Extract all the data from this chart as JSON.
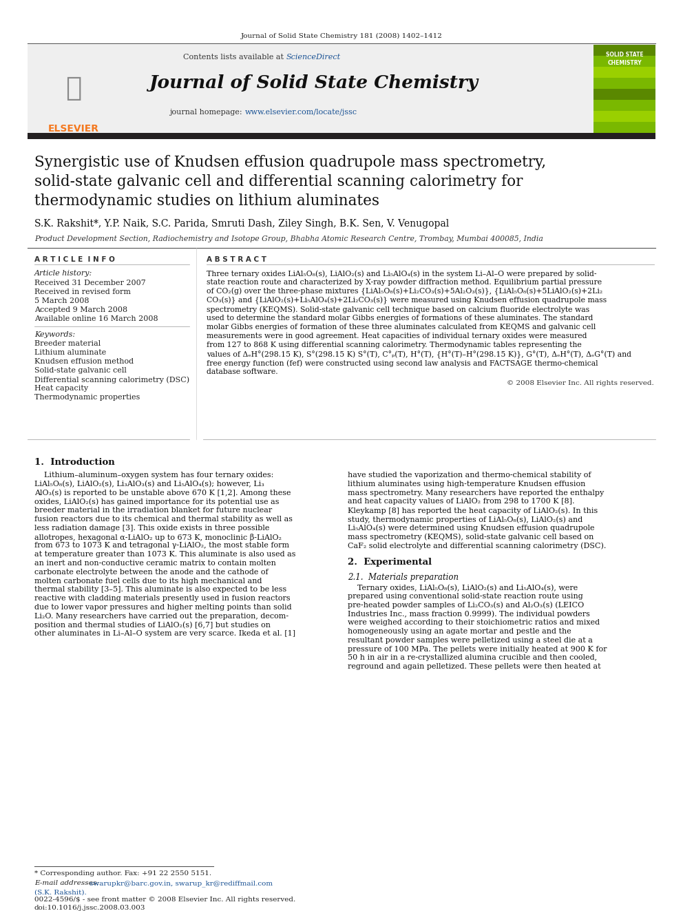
{
  "page_citation": "Journal of Solid State Chemistry 181 (2008) 1402–1412",
  "journal_name": "Journal of Solid State Chemistry",
  "contents_line": "Contents lists available at",
  "sciencedirect": "ScienceDirect",
  "homepage_label": "journal homepage:",
  "homepage_url": "www.elsevier.com/locate/jssc",
  "title_line1": "Synergistic use of Knudsen effusion quadrupole mass spectrometry,",
  "title_line2": "solid-state galvanic cell and differential scanning calorimetry for",
  "title_line3": "thermodynamic studies on lithium aluminates",
  "authors": "S.K. Rakshit*, Y.P. Naik, S.C. Parida, Smruti Dash, Ziley Singh, B.K. Sen, V. Venugopal",
  "affiliation": "Product Development Section, Radiochemistry and Isotope Group, Bhabha Atomic Research Centre, Trombay, Mumbai 400085, India",
  "article_info_header": "A R T I C L E  I N F O",
  "article_history_label": "Article history:",
  "history_lines": [
    "Received 31 December 2007",
    "Received in revised form",
    "5 March 2008",
    "Accepted 9 March 2008",
    "Available online 16 March 2008"
  ],
  "keywords_label": "Keywords:",
  "keywords": [
    "Breeder material",
    "Lithium aluminate",
    "Knudsen effusion method",
    "Solid-state galvanic cell",
    "Differential scanning calorimetry (DSC)",
    "Heat capacity",
    "Thermodynamic properties"
  ],
  "abstract_header": "A B S T R A C T",
  "abstract_lines": [
    "Three ternary oxides LiAl₅O₈(s), LiAlO₂(s) and Li₅AlO₄(s) in the system Li–Al–O were prepared by solid-",
    "state reaction route and characterized by X-ray powder diffraction method. Equilibrium partial pressure",
    "of CO₂(g) over the three-phase mixtures {LiAl₅O₈(s)+Li₂CO₃(s)+5Al₂O₃(s)}, {LiAl₅O₈(s)+5LiAlO₂(s)+2Li₂",
    "CO₃(s)} and {LiAlO₂(s)+Li₅AlO₄(s)+2Li₂CO₃(s)} were measured using Knudsen effusion quadrupole mass",
    "spectrometry (KEQMS). Solid-state galvanic cell technique based on calcium fluoride electrolyte was",
    "used to determine the standard molar Gibbs energies of formations of these aluminates. The standard",
    "molar Gibbs energies of formation of these three aluminates calculated from KEQMS and galvanic cell",
    "measurements were in good agreement. Heat capacities of individual ternary oxides were measured",
    "from 127 to 868 K using differential scanning calorimetry. Thermodynamic tables representing the",
    "values of ΔₑH°(298.15 K), S°(298.15 K) S°(T), C°ₚ(T), H°(T), {H°(T)–H°(298.15 K)}, G°(T), ΔₑH°(T), ΔₑG°(T) and",
    "free energy function (fef) were constructed using second law analysis and FACTSAGE thermo-chemical",
    "database software."
  ],
  "copyright": "© 2008 Elsevier Inc. All rights reserved.",
  "intro_header": "1.  Introduction",
  "intro_col1_lines": [
    "    Lithium–aluminum–oxygen system has four ternary oxides:",
    "LiAl₅O₈(s), LiAlO₂(s), Li₃AlO₃(s) and Li₅AlO₄(s); however, Li₃",
    "AlO₃(s) is reported to be unstable above 670 K [1,2]. Among these",
    "oxides, LiAlO₂(s) has gained importance for its potential use as",
    "breeder material in the irradiation blanket for future nuclear",
    "fusion reactors due to its chemical and thermal stability as well as",
    "less radiation damage [3]. This oxide exists in three possible",
    "allotropes, hexagonal α-LiAlO₂ up to 673 K, monoclinic β-LiAlO₂",
    "from 673 to 1073 K and tetragonal γ-LiAlO₂, the most stable form",
    "at temperature greater than 1073 K. This aluminate is also used as",
    "an inert and non-conductive ceramic matrix to contain molten",
    "carbonate electrolyte between the anode and the cathode of",
    "molten carbonate fuel cells due to its high mechanical and",
    "thermal stability [3–5]. This aluminate is also expected to be less",
    "reactive with cladding materials presently used in fusion reactors",
    "due to lower vapor pressures and higher melting points than solid",
    "Li₂O. Many researchers have carried out the preparation, decom-",
    "position and thermal studies of LiAlO₂(s) [6,7] but studies on",
    "other aluminates in Li–Al–O system are very scarce. Ikeda et al. [1]"
  ],
  "intro_col2_lines": [
    "have studied the vaporization and thermo-chemical stability of",
    "lithium aluminates using high-temperature Knudsen effusion",
    "mass spectrometry. Many researchers have reported the enthalpy",
    "and heat capacity values of LiAlO₂ from 298 to 1700 K [8].",
    "Kleykamp [8] has reported the heat capacity of LiAlO₂(s). In this",
    "study, thermodynamic properties of LiAl₅O₈(s), LiAlO₂(s) and",
    "Li₅AlO₄(s) were determined using Knudsen effusion quadrupole",
    "mass spectrometry (KEQMS), solid-state galvanic cell based on",
    "CaF₂ solid electrolyte and differential scanning calorimetry (DSC)."
  ],
  "section2_header": "2.  Experimental",
  "section21_header": "2.1.  Materials preparation",
  "section21_lines": [
    "    Ternary oxides, LiAl₅O₈(s), LiAlO₂(s) and Li₅AlO₄(s), were",
    "prepared using conventional solid-state reaction route using",
    "pre-heated powder samples of Li₂CO₃(s) and Al₂O₃(s) (LEICO",
    "Industries Inc., mass fraction 0.9999). The individual powders",
    "were weighed according to their stoichiometric ratios and mixed",
    "homogeneously using an agate mortar and pestle and the",
    "resultant powder samples were pelletized using a steel die at a",
    "pressure of 100 MPa. The pellets were initially heated at 900 K for",
    "50 h in air in a re-crystallized alumina crucible and then cooled,",
    "reground and again pelletized. These pellets were then heated at"
  ],
  "footnote_star": "* Corresponding author. Fax: +91 22 2550 5151.",
  "footnote_email_label": "E-mail addresses:",
  "footnote_email": "swarupkr@barc.gov.in, swarup_kr@rediffmail.com",
  "footnote_name": "(S.K. Rakshit).",
  "issn_line": "0022-4596/$ - see front matter © 2008 Elsevier Inc. All rights reserved.",
  "doi_line": "doi:10.1016/j.jssc.2008.03.003",
  "bg_color": "#ffffff",
  "header_bg": "#efefef",
  "elsevier_orange": "#f47920",
  "blue_link": "#1a5294",
  "dark_bar_color": "#231f20"
}
